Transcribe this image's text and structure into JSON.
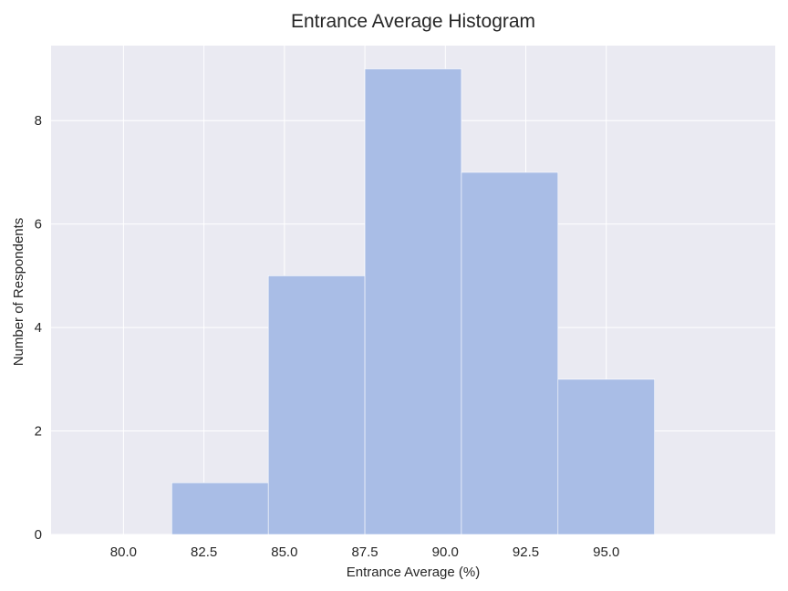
{
  "chart_data": {
    "type": "bar",
    "title": "Entrance Average Histogram",
    "xlabel": "Entrance Average (%)",
    "ylabel": "Number of Respondents",
    "bins": [
      {
        "start": 81.5,
        "end": 84.5,
        "count": 1
      },
      {
        "start": 84.5,
        "end": 87.5,
        "count": 5
      },
      {
        "start": 87.5,
        "end": 90.5,
        "count": 9
      },
      {
        "start": 90.5,
        "end": 93.5,
        "count": 7
      },
      {
        "start": 93.5,
        "end": 96.5,
        "count": 3
      }
    ],
    "xlim": [
      77.75,
      100.25
    ],
    "ylim": [
      0,
      9.45
    ],
    "xticks": [
      80.0,
      82.5,
      85.0,
      87.5,
      90.0,
      92.5,
      95.0
    ],
    "xtick_labels": [
      "80.0",
      "82.5",
      "85.0",
      "87.5",
      "90.0",
      "92.5",
      "95.0"
    ],
    "yticks": [
      0,
      2,
      4,
      6,
      8
    ],
    "ytick_labels": [
      "0",
      "2",
      "4",
      "6",
      "8"
    ],
    "grid": true,
    "colors": {
      "background": "#eaeaf2",
      "bar": "#a9bde6",
      "bar_edge": "#ffffff",
      "grid": "#ffffff",
      "text": "#262626"
    }
  }
}
